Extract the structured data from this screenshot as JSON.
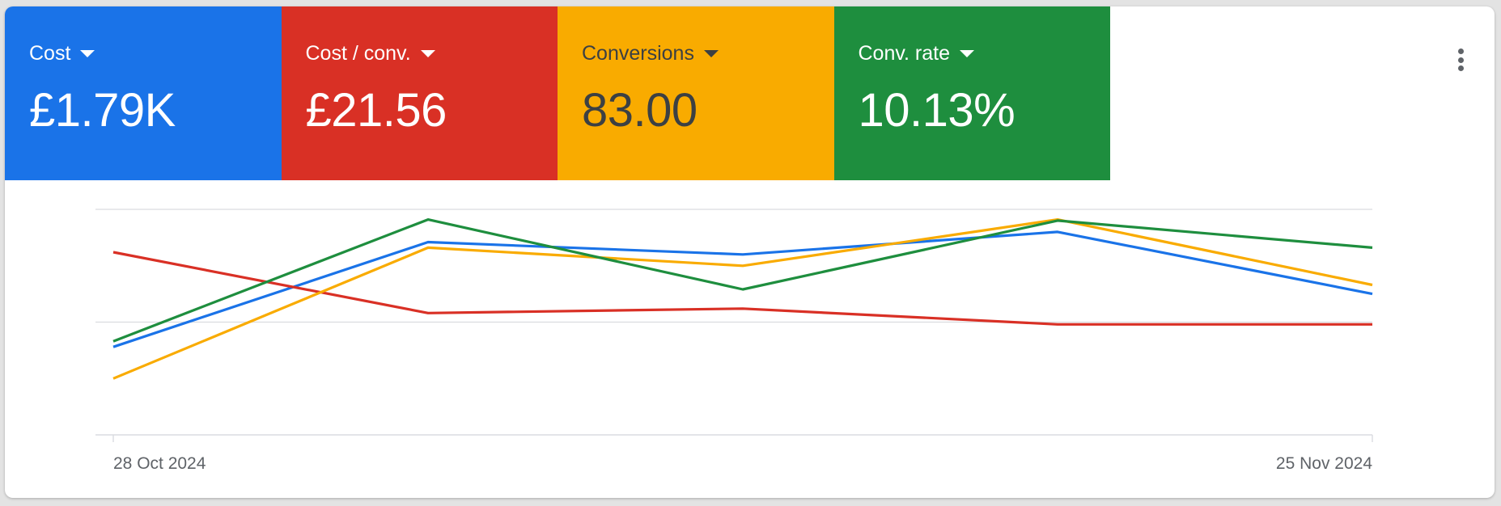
{
  "metrics": [
    {
      "label": "Cost",
      "value": "£1.79K",
      "color": "#1a73e8",
      "text_color": "#ffffff"
    },
    {
      "label": "Cost / conv.",
      "value": "£21.56",
      "color": "#d93025",
      "text_color": "#ffffff"
    },
    {
      "label": "Conversions",
      "value": "83.00",
      "color": "#f9ab00",
      "text_color": "#3c4043"
    },
    {
      "label": "Conv. rate",
      "value": "10.13%",
      "color": "#1e8e3e",
      "text_color": "#ffffff"
    }
  ],
  "menu_icon": "more-vert-icon",
  "chart_data": {
    "type": "line",
    "x_labels": [
      "28 Oct 2024",
      "25 Nov 2024"
    ],
    "grid": true,
    "series": [
      {
        "name": "Cost",
        "color": "#1a73e8",
        "values": [
          0.78,
          1.71,
          1.6,
          1.8,
          1.25
        ]
      },
      {
        "name": "Cost / conv.",
        "color": "#d93025",
        "values": [
          1.62,
          1.08,
          1.12,
          0.98,
          0.98
        ]
      },
      {
        "name": "Conversions",
        "color": "#f9ab00",
        "values": [
          0.5,
          1.66,
          1.5,
          1.91,
          1.33
        ]
      },
      {
        "name": "Conv. rate",
        "color": "#1e8e3e",
        "values": [
          0.83,
          1.91,
          1.29,
          1.9,
          1.66
        ]
      }
    ],
    "ylim": [
      0,
      2
    ]
  }
}
